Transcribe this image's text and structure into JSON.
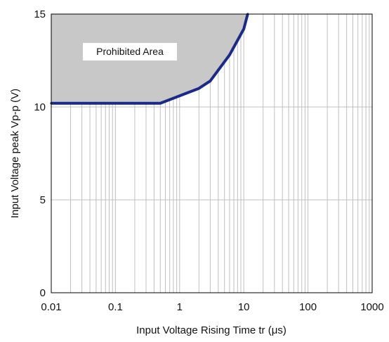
{
  "chart_data": {
    "type": "line",
    "title": "",
    "xlabel": "Input Voltage Rising Time tr (μs)",
    "ylabel": "Input Voltage peak Vp-p (V)",
    "x_scale": "log",
    "xlim": [
      0.01,
      1000
    ],
    "ylim": [
      0,
      15
    ],
    "x_ticks": [
      0.01,
      0.1,
      1,
      10,
      100,
      1000
    ],
    "x_tick_labels": [
      "0.01",
      "0.1",
      "1",
      "10",
      "100",
      "1000"
    ],
    "y_ticks": [
      0,
      5,
      10,
      15
    ],
    "y_tick_labels": [
      "0",
      "5",
      "10",
      "15"
    ],
    "grid": true,
    "region_label": "Prohibited Area",
    "series": [
      {
        "x": [
          0.01,
          0.5,
          2,
          3,
          6,
          10,
          11.5
        ],
        "y": [
          10.2,
          10.2,
          11.0,
          11.4,
          12.8,
          14.2,
          15.0
        ]
      }
    ],
    "colors": {
      "line": "#1a2a8c",
      "region": "#c8c8c8",
      "grid": "#c0c0c0"
    }
  }
}
